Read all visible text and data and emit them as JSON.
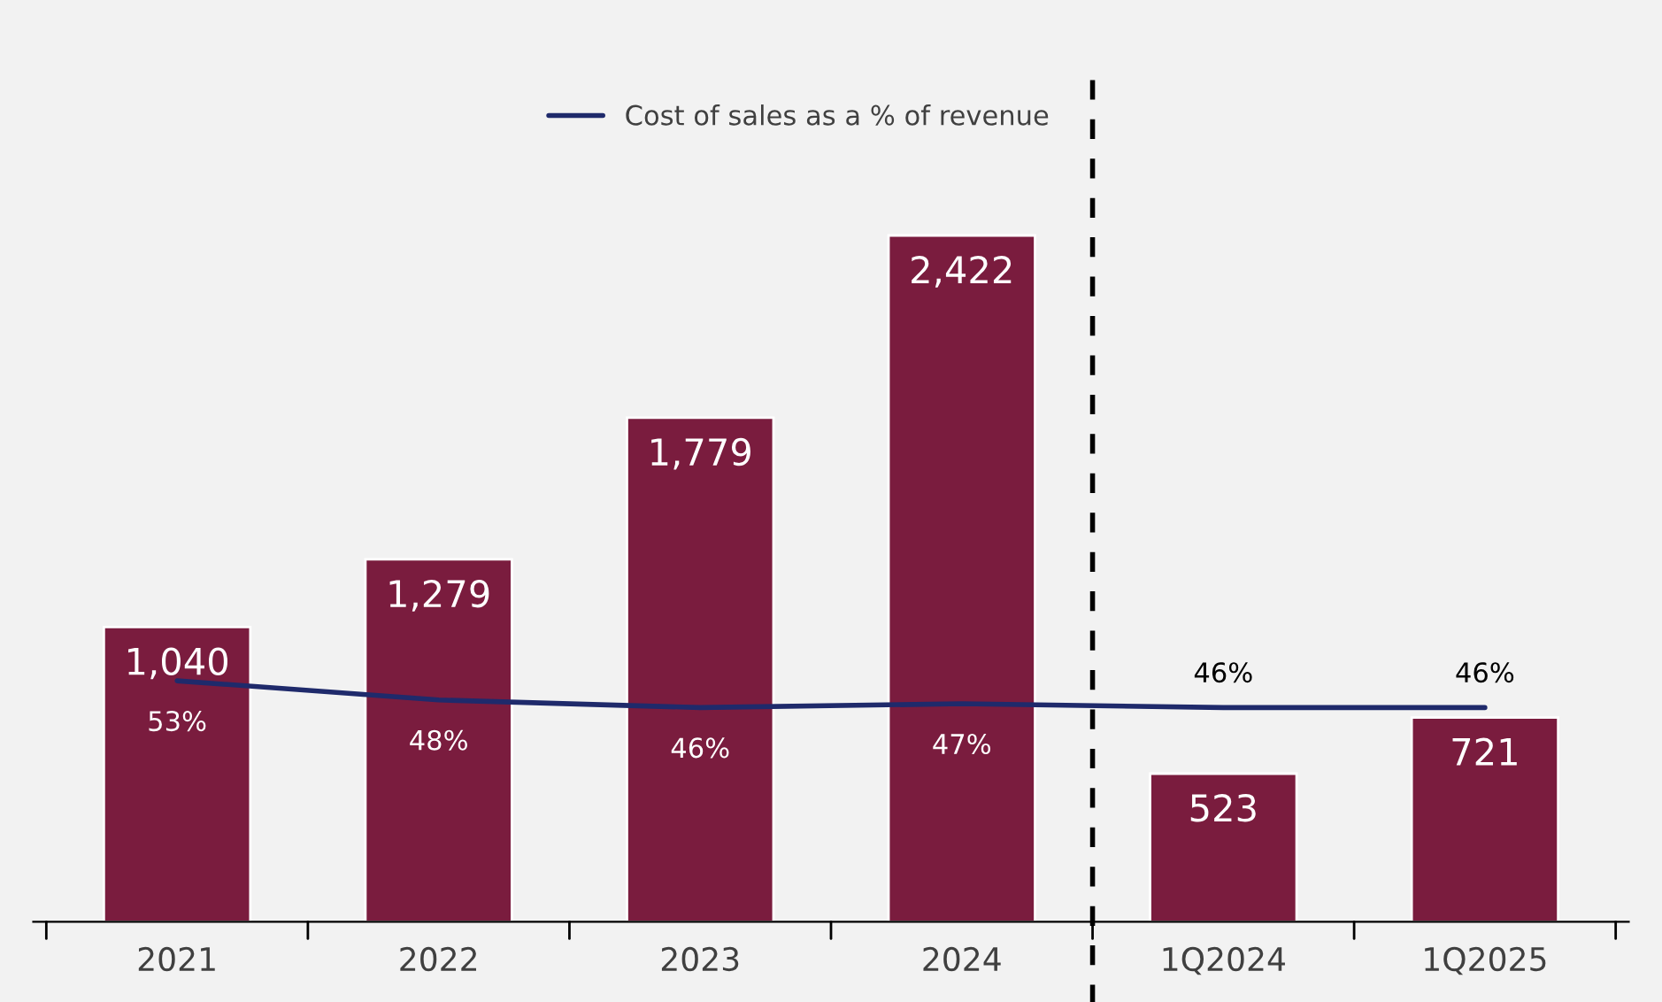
{
  "chart_data": {
    "type": "bar",
    "categories": [
      "2021",
      "2022",
      "2023",
      "2024",
      "1Q2024",
      "1Q2025"
    ],
    "series": [
      {
        "color": "#7a1c3e",
        "values": [
          1040,
          1279,
          1779,
          2422,
          523,
          721
        ],
        "value_labels": [
          "1,040",
          "1,279",
          "1,779",
          "2,422",
          "523",
          "721"
        ]
      },
      {
        "type": "line",
        "name": "Cost of sales as a % of revenue",
        "axis": "y2",
        "color": "#1f2a6b",
        "values": [
          53,
          48,
          46,
          47,
          46,
          46
        ],
        "value_labels": [
          "53%",
          "48%",
          "46%",
          "47%",
          "46%",
          "46%"
        ]
      }
    ],
    "ylim": [
      0,
      2970
    ],
    "y2lim": [
      -10,
      210
    ],
    "tick_labels": "x",
    "legend": "top",
    "grid": false
  }
}
